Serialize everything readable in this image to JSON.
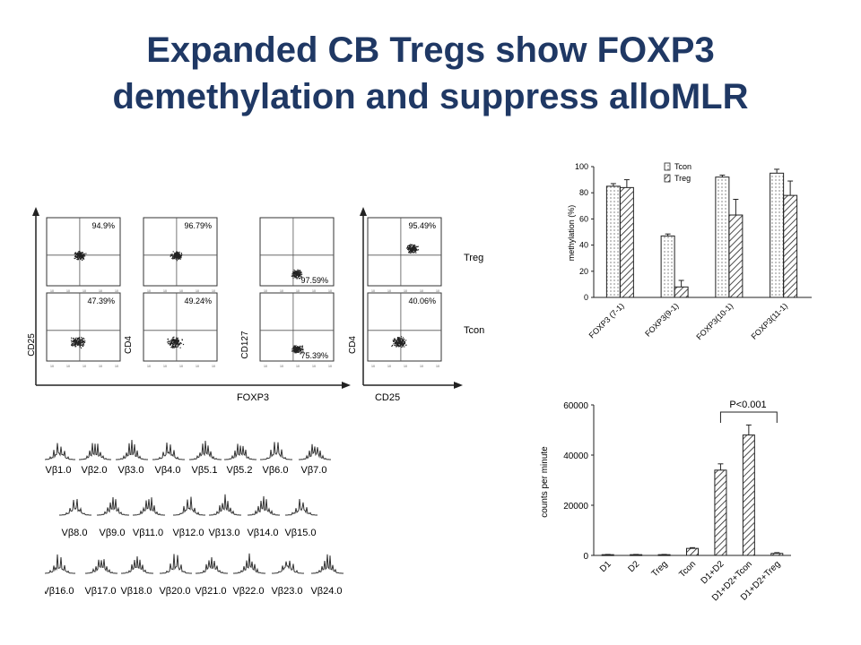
{
  "slide": {
    "title_line1": "Expanded CB Tregs show FOXP3",
    "title_line2": "demethylation and suppress alloMLR"
  },
  "flow": {
    "row_labels": [
      "Treg",
      "Tcon"
    ],
    "plots": [
      {
        "y_label": "CD25",
        "x_label": "FOXP3",
        "treg_pct": "94.9%",
        "tcon_pct": "47.39%",
        "quadrant": "upper-right"
      },
      {
        "y_label": "CD4",
        "x_label": "",
        "treg_pct": "96.79%",
        "tcon_pct": "49.24%",
        "quadrant": "upper-right"
      },
      {
        "y_label": "CD127",
        "x_label": "",
        "treg_pct": "97.59%",
        "tcon_pct": "75.39%",
        "quadrant": "lower-right"
      },
      {
        "y_label": "CD4",
        "x_label": "CD25",
        "treg_pct": "95.49%",
        "tcon_pct": "40.06%",
        "quadrant": "upper-right"
      }
    ],
    "shared_x_label": "FOXP3",
    "fourth_x_label": "CD25"
  },
  "vbeta": {
    "rows": [
      [
        "Vβ1.0",
        "Vβ2.0",
        "Vβ3.0",
        "Vβ4.0",
        "Vβ5.1",
        "Vβ5.2",
        "Vβ6.0",
        "Vβ7.0"
      ],
      [
        "Vβ8.0",
        "Vβ9.0",
        "Vβ11.0",
        "Vβ12.0",
        "Vβ13.0",
        "Vβ14.0",
        "Vβ15.0"
      ],
      [
        "Vβ16.0",
        "Vβ17.0",
        "Vβ18.0",
        "Vβ20.0",
        "Vβ21.0",
        "Vβ22.0",
        "Vβ23.0",
        "Vβ24.0"
      ]
    ]
  },
  "chart_data": [
    {
      "type": "bar",
      "ylabel": "methylation (%)",
      "categories": [
        "FOXP3 (7-1)",
        "FOXP3(9-1)",
        "FOXP3(10-1)",
        "FOXP3(11-1)"
      ],
      "series": [
        {
          "name": "Tcon",
          "values": [
            85,
            47,
            92,
            95
          ],
          "errors": [
            2,
            1.5,
            1.5,
            3
          ],
          "pattern": "dots"
        },
        {
          "name": "Treg",
          "values": [
            84,
            8,
            63,
            78
          ],
          "errors": [
            6,
            5,
            12,
            11
          ],
          "pattern": "hatch"
        }
      ],
      "ylim": [
        0,
        100
      ],
      "yticks": [
        0,
        20,
        40,
        60,
        80,
        100
      ],
      "legend": "top-right"
    },
    {
      "type": "bar",
      "ylabel": "counts per minute",
      "categories": [
        "D1",
        "D2",
        "Treg",
        "Tcon",
        "D1+D2",
        "D1+D2+Tcon",
        "D1+D2+Treg"
      ],
      "values": [
        300,
        300,
        300,
        2800,
        34000,
        48000,
        800
      ],
      "errors": [
        100,
        100,
        100,
        300,
        2500,
        4000,
        300
      ],
      "ylim": [
        0,
        60000
      ],
      "yticks": [
        0,
        20000,
        40000,
        60000
      ],
      "annotation": "P<0.001"
    }
  ],
  "colors": {
    "title": "#1f3864",
    "ink": "#222222"
  }
}
